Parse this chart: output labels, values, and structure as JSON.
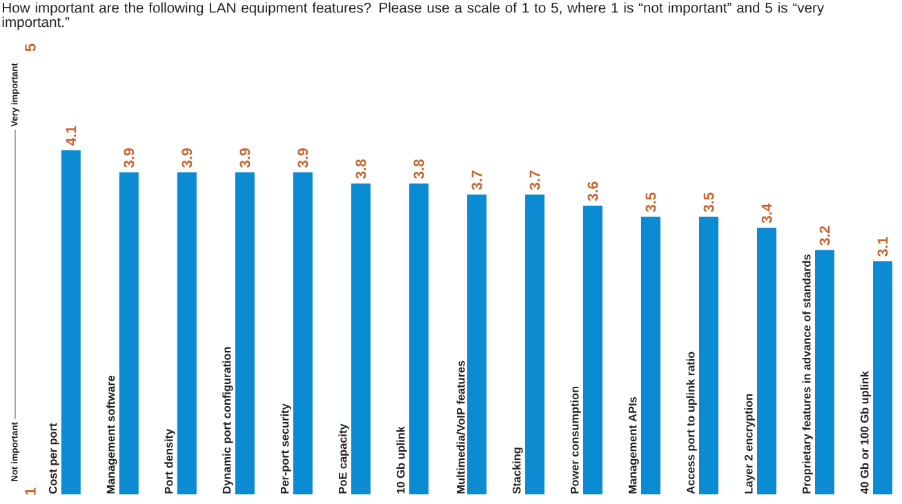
{
  "chart_data": {
    "type": "bar",
    "title": "How important are the following LAN equipment features? Please use a scale of 1 to 5, where 1 is “not important” and 5 is “very important.”",
    "categories": [
      "Cost per port",
      "Management software",
      "Port density",
      "Dynamic port configuration",
      "Per-port security",
      "PoE capacity",
      "10 Gb uplink",
      "Multimedia/VoIP features",
      "Stacking",
      "Power consumption",
      "Management APIs",
      "Access port to uplink ratio",
      "Layer 2 encryption",
      "Proprietary features in advance of standards",
      "40 Gb or 100 Gb uplink"
    ],
    "values": [
      4.1,
      3.9,
      3.9,
      3.9,
      3.9,
      3.8,
      3.8,
      3.7,
      3.7,
      3.6,
      3.5,
      3.5,
      3.4,
      3.2,
      3.1
    ],
    "color": "#0b8bd1",
    "data_labels": true,
    "ylim": [
      1,
      5
    ],
    "yticks": [
      1,
      5
    ],
    "annotations": [
      "Not important",
      "Very important"
    ]
  }
}
